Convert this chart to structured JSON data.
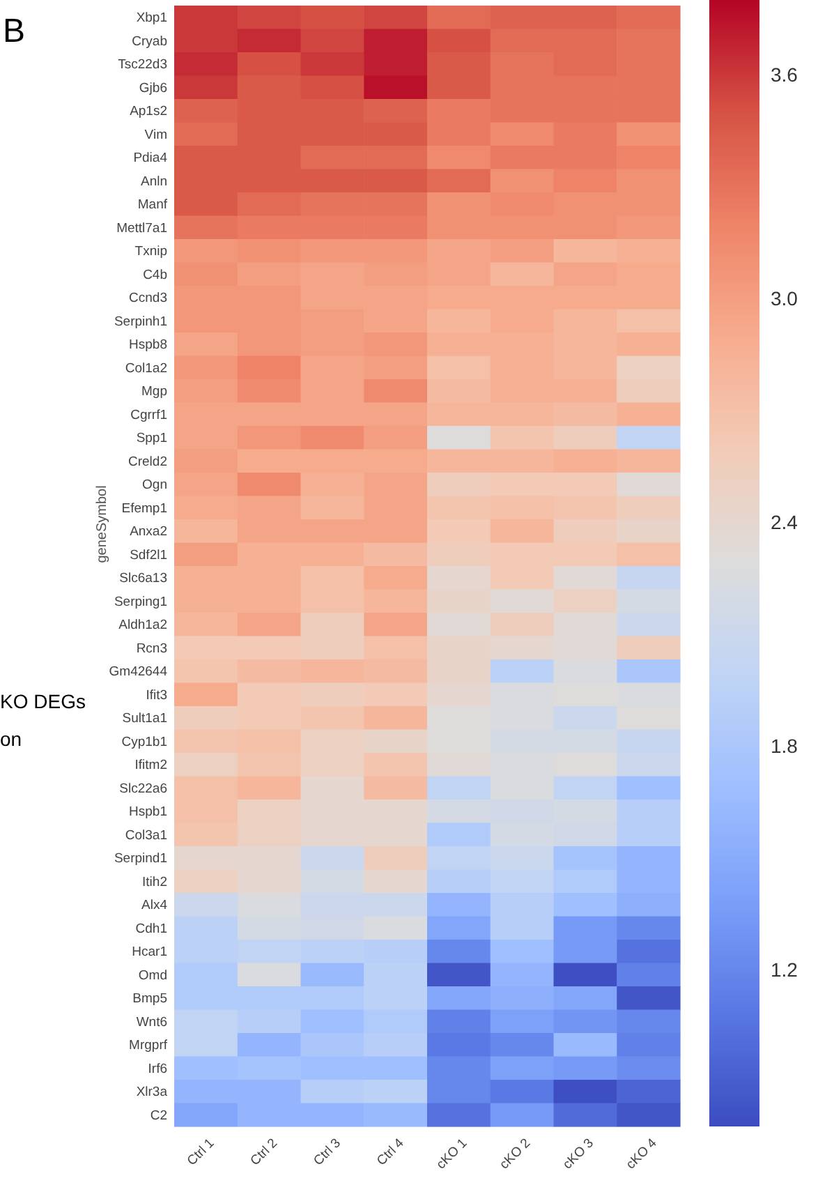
{
  "chart_data": {
    "type": "heatmap",
    "ylabel": "geneSymbol",
    "annotations": [
      "B",
      "KO DEGs",
      "on"
    ],
    "categories": [
      "Ctrl 1",
      "Ctrl 2",
      "Ctrl 3",
      "Ctrl 4",
      "cKO 1",
      "cKO 2",
      "cKO 3",
      "cKO 4"
    ],
    "y_categories": [
      "Xbp1",
      "Cryab",
      "Tsc22d3",
      "Gjb6",
      "Ap1s2",
      "Vim",
      "Pdia4",
      "Anln",
      "Manf",
      "Mettl7a1",
      "Txnip",
      "C4b",
      "Ccnd3",
      "Serpinh1",
      "Hspb8",
      "Col1a2",
      "Mgp",
      "Cgrrf1",
      "Spp1",
      "Creld2",
      "Ogn",
      "Efemp1",
      "Anxa2",
      "Sdf2l1",
      "Slc6a13",
      "Serping1",
      "Aldh1a2",
      "Rcn3",
      "Gm42644",
      "Ifit3",
      "Sult1a1",
      "Cyp1b1",
      "Ifitm2",
      "Slc22a6",
      "Hspb1",
      "Col3a1",
      "Serpind1",
      "Itih2",
      "Alx4",
      "Cdh1",
      "Hcar1",
      "Omd",
      "Bmp5",
      "Wnt6",
      "Mrgprf",
      "Irf6",
      "Xlr3a",
      "C2"
    ],
    "cells": [
      [
        3.6,
        3.55,
        3.5,
        3.55,
        3.35,
        3.4,
        3.4,
        3.35
      ],
      [
        3.6,
        3.65,
        3.55,
        3.7,
        3.5,
        3.35,
        3.35,
        3.3
      ],
      [
        3.65,
        3.5,
        3.6,
        3.7,
        3.45,
        3.3,
        3.35,
        3.3
      ],
      [
        3.6,
        3.45,
        3.5,
        3.75,
        3.45,
        3.3,
        3.3,
        3.3
      ],
      [
        3.4,
        3.45,
        3.45,
        3.4,
        3.25,
        3.3,
        3.3,
        3.3
      ],
      [
        3.35,
        3.45,
        3.45,
        3.45,
        3.25,
        3.15,
        3.25,
        3.1
      ],
      [
        3.45,
        3.45,
        3.35,
        3.35,
        3.15,
        3.25,
        3.25,
        3.2
      ],
      [
        3.45,
        3.45,
        3.45,
        3.45,
        3.35,
        3.1,
        3.2,
        3.1
      ],
      [
        3.45,
        3.35,
        3.3,
        3.3,
        3.1,
        3.15,
        3.1,
        3.1
      ],
      [
        3.3,
        3.25,
        3.25,
        3.25,
        3.1,
        3.1,
        3.1,
        3.05
      ],
      [
        3.05,
        3.1,
        3.05,
        3.05,
        2.95,
        3.0,
        2.8,
        2.85
      ],
      [
        3.1,
        3.0,
        2.95,
        3.0,
        2.95,
        2.8,
        2.95,
        2.9
      ],
      [
        3.05,
        3.05,
        2.95,
        2.95,
        2.9,
        2.9,
        2.9,
        2.9
      ],
      [
        3.05,
        3.05,
        3.0,
        2.95,
        2.8,
        2.9,
        2.8,
        2.7
      ],
      [
        2.95,
        3.05,
        3.0,
        3.05,
        2.85,
        2.85,
        2.8,
        2.85
      ],
      [
        3.05,
        3.2,
        2.95,
        3.0,
        2.7,
        2.85,
        2.8,
        2.5
      ],
      [
        3.0,
        3.15,
        2.95,
        3.15,
        2.75,
        2.85,
        2.85,
        2.55
      ],
      [
        2.95,
        2.95,
        2.95,
        2.95,
        2.8,
        2.8,
        2.75,
        2.85
      ],
      [
        2.95,
        3.05,
        3.15,
        3.0,
        2.3,
        2.65,
        2.55,
        2.0
      ],
      [
        3.0,
        2.9,
        2.9,
        2.9,
        2.8,
        2.8,
        2.85,
        2.8
      ],
      [
        2.95,
        3.15,
        2.85,
        2.95,
        2.55,
        2.6,
        2.6,
        2.35
      ],
      [
        2.9,
        2.95,
        2.8,
        2.95,
        2.65,
        2.7,
        2.65,
        2.55
      ],
      [
        2.8,
        2.95,
        2.95,
        2.95,
        2.6,
        2.8,
        2.55,
        2.45
      ],
      [
        3.0,
        2.85,
        2.85,
        2.75,
        2.55,
        2.6,
        2.6,
        2.7
      ],
      [
        2.85,
        2.85,
        2.7,
        2.9,
        2.4,
        2.6,
        2.35,
        2.05
      ],
      [
        2.85,
        2.85,
        2.7,
        2.8,
        2.45,
        2.35,
        2.5,
        2.2
      ],
      [
        2.8,
        2.95,
        2.55,
        2.95,
        2.35,
        2.55,
        2.35,
        2.1
      ],
      [
        2.6,
        2.6,
        2.55,
        2.7,
        2.45,
        2.4,
        2.35,
        2.55
      ],
      [
        2.65,
        2.75,
        2.8,
        2.75,
        2.45,
        1.95,
        2.25,
        1.8
      ],
      [
        2.9,
        2.6,
        2.55,
        2.6,
        2.4,
        2.25,
        2.3,
        2.25
      ],
      [
        2.55,
        2.6,
        2.65,
        2.8,
        2.3,
        2.25,
        2.1,
        2.3
      ],
      [
        2.65,
        2.7,
        2.5,
        2.45,
        2.3,
        2.2,
        2.2,
        2.05
      ],
      [
        2.5,
        2.65,
        2.5,
        2.65,
        2.35,
        2.25,
        2.3,
        2.1
      ],
      [
        2.7,
        2.8,
        2.4,
        2.75,
        2.0,
        2.25,
        2.0,
        1.7
      ],
      [
        2.7,
        2.5,
        2.4,
        2.4,
        2.2,
        2.15,
        2.2,
        1.9
      ],
      [
        2.65,
        2.5,
        2.4,
        2.4,
        1.85,
        2.2,
        2.15,
        1.9
      ],
      [
        2.4,
        2.4,
        2.1,
        2.55,
        2.0,
        2.1,
        1.75,
        1.6
      ],
      [
        2.5,
        2.4,
        2.2,
        2.4,
        1.9,
        2.0,
        1.85,
        1.6
      ],
      [
        2.1,
        2.25,
        2.1,
        2.1,
        1.6,
        1.9,
        1.7,
        1.55
      ],
      [
        1.95,
        2.2,
        2.15,
        2.25,
        1.45,
        1.9,
        1.35,
        1.2
      ],
      [
        1.95,
        2.0,
        1.95,
        1.9,
        1.2,
        1.7,
        1.35,
        1.05
      ],
      [
        1.85,
        2.25,
        1.65,
        1.95,
        0.85,
        1.6,
        0.8,
        1.15
      ],
      [
        1.85,
        1.85,
        1.85,
        1.95,
        1.45,
        1.55,
        1.45,
        0.85
      ],
      [
        2.0,
        1.9,
        1.7,
        1.85,
        1.15,
        1.4,
        1.3,
        1.2
      ],
      [
        2.0,
        1.6,
        1.8,
        1.9,
        1.1,
        1.2,
        1.65,
        1.15
      ],
      [
        1.7,
        1.75,
        1.7,
        1.7,
        1.2,
        1.4,
        1.35,
        1.25
      ],
      [
        1.6,
        1.6,
        1.9,
        1.95,
        1.2,
        1.1,
        0.8,
        0.95
      ],
      [
        1.45,
        1.6,
        1.6,
        1.65,
        1.05,
        1.35,
        1.0,
        0.85
      ]
    ],
    "clim": [
      0.78,
      3.8
    ],
    "cticks": [
      1.2,
      1.8,
      2.4,
      {
        "value": 3,
        "label": "3.0"
      },
      3.6
    ]
  }
}
